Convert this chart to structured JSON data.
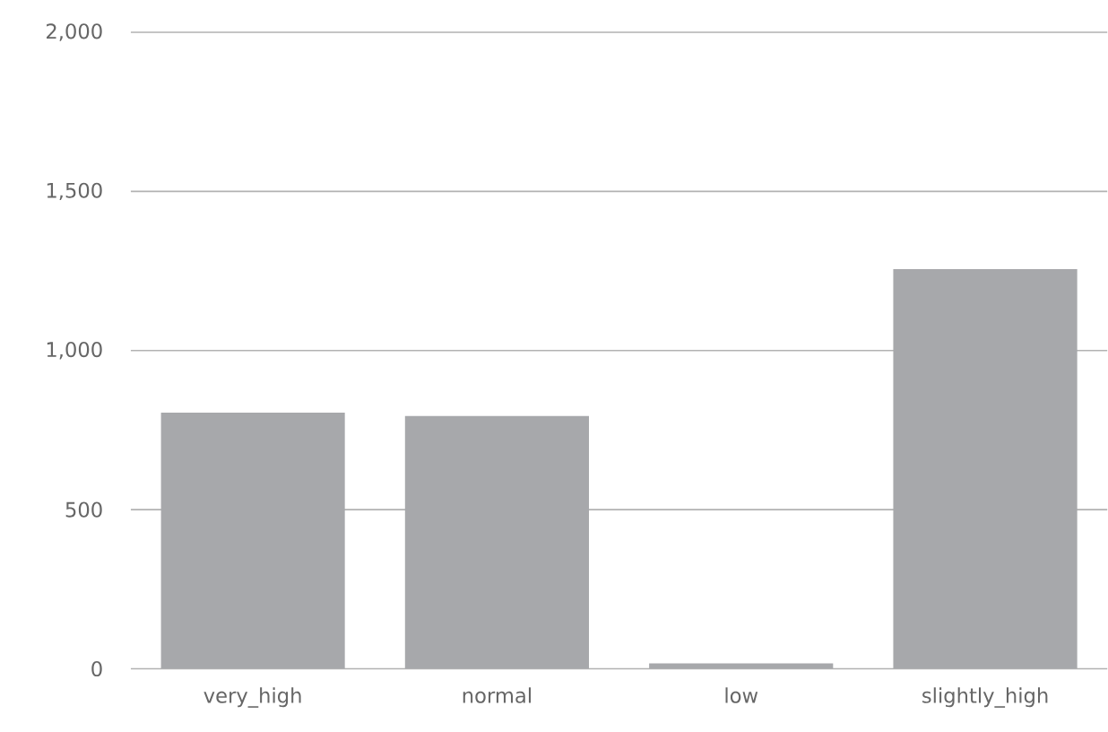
{
  "chart_data": {
    "type": "bar",
    "categories": [
      "very_high",
      "normal",
      "low",
      "slightly_high"
    ],
    "values": [
      805,
      794,
      17,
      1256
    ],
    "color": "#a7a8ab",
    "ylim": [
      0,
      2000
    ],
    "yticks": [
      0,
      {
        "value": 500,
        "label": "500"
      },
      {
        "value": 1000,
        "label": "1,000"
      },
      {
        "value": 1500,
        "label": "1,500"
      },
      {
        "value": 2000,
        "label": "2,000"
      }
    ],
    "grid": "y"
  }
}
